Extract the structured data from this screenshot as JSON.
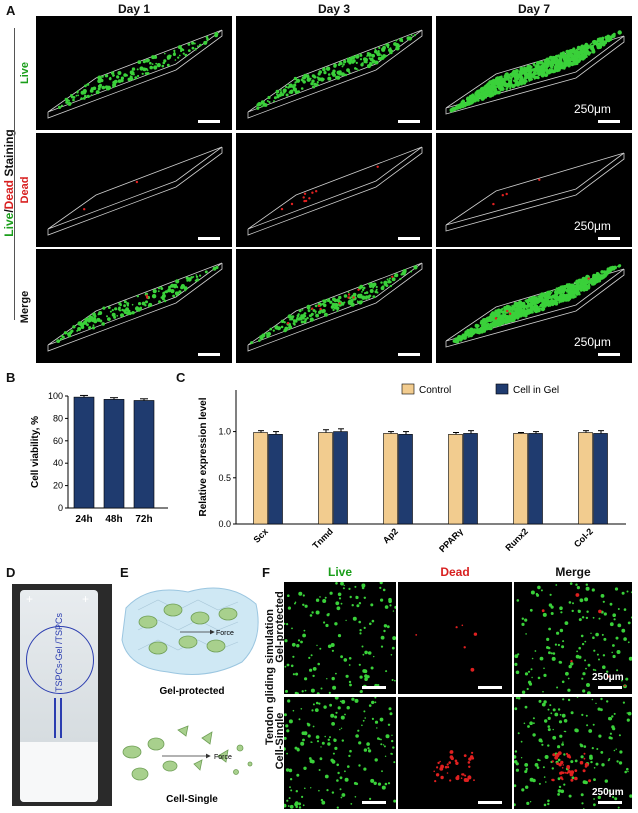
{
  "panel_letters": {
    "A": "A",
    "B": "B",
    "C": "C",
    "D": "D",
    "E": "E",
    "F": "F"
  },
  "panel_a": {
    "days": [
      "Day 1",
      "Day 3",
      "Day 7"
    ],
    "rows": {
      "live": "Live",
      "dead": "Dead",
      "merge": "Merge"
    },
    "side_title": {
      "live": "Live",
      "slash": "/",
      "dead": "Dead",
      "rest": " Staining"
    },
    "scale_text": "250μm",
    "colors": {
      "live": "#3ad13a",
      "dead": "#e02020"
    }
  },
  "panel_e": {
    "gel": "Gel-protected",
    "single": "Cell-Single",
    "force": "Force"
  },
  "panel_d": {
    "circle": "TSPCs-Gel\n/TSPCs",
    "text": "TSPCs-Gel /TSPCs"
  },
  "panel_f": {
    "cols": [
      "Live",
      "Dead",
      "Merge"
    ],
    "title": "Tendon gliding simulation",
    "rows": [
      "Gel-protected",
      "Cell-Single"
    ],
    "scale_text": "250μm"
  },
  "chart_data": [
    {
      "type": "bar",
      "categories": [
        "24h",
        "48h",
        "72h"
      ],
      "values": [
        99,
        97,
        96
      ],
      "errors": [
        1.5,
        1.5,
        1.5
      ],
      "ylabel": "Cell viability, %",
      "yticks": [
        0,
        20,
        40,
        60,
        80,
        100
      ],
      "ylim": [
        0,
        100
      ],
      "color": "#1f3b6f"
    },
    {
      "type": "bar",
      "categories": [
        "Scx",
        "Tnmd",
        "Ap2",
        "PPARγ",
        "Runx2",
        "Col-2"
      ],
      "series": [
        {
          "name": "Control",
          "values": [
            0.99,
            0.99,
            0.98,
            0.97,
            0.98,
            0.99
          ],
          "errors": [
            0.02,
            0.03,
            0.02,
            0.02,
            0.01,
            0.02
          ],
          "color": "#f2cc8f"
        },
        {
          "name": "Cell in Gel",
          "values": [
            0.97,
            1.0,
            0.97,
            0.98,
            0.98,
            0.98
          ],
          "errors": [
            0.03,
            0.03,
            0.03,
            0.03,
            0.02,
            0.03
          ],
          "color": "#1f3b6f"
        }
      ],
      "ylabel": "Relative expression level",
      "yticks": [
        "0.0",
        "0.5",
        "1.0"
      ],
      "ylim": [
        0,
        1.45
      ]
    }
  ]
}
